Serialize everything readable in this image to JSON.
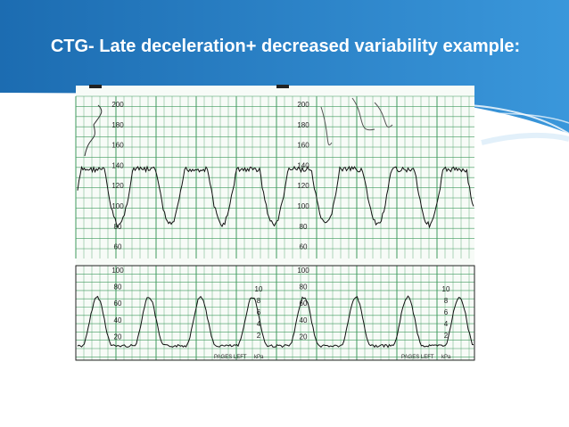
{
  "title": "CTG- Late deceleration+ decreased variability example:",
  "trace": {
    "fhr_scale": [
      "200",
      "180",
      "160",
      "140",
      "120",
      "100",
      "80",
      "60"
    ],
    "toco_scale": [
      "100",
      "80",
      "60",
      "40",
      "20"
    ],
    "kpa_scale": [
      "10",
      "8",
      "6",
      "4",
      "2"
    ],
    "footer_left": "PAGES LEFT",
    "footer_unit": "kPa"
  }
}
